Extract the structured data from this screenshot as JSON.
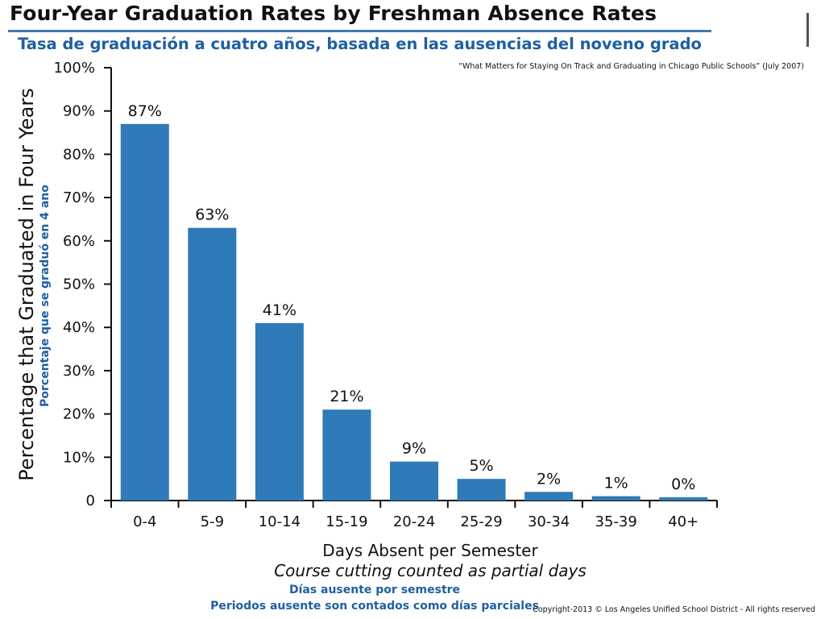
{
  "title_en": "Four-Year Graduation Rates by Freshman Absence Rates",
  "title_es": "Tasa de graduación a cuatro años, basada en las ausencias del noveno grado",
  "source": "“What Matters for Staying On Track and Graduating in Chicago Public Schools” (July 2007)",
  "ylabel_es": "Porcentaje que se graduó en 4 ano",
  "xlabel_es": "Días ausente por semestre",
  "xsub_es": "Periodos ausente son contados como días parciales",
  "copyright": "Copyright-2013 © Los Angeles Unified School District - All rights reserved",
  "colors": {
    "bar": "#2f7ab8",
    "accent": "#1f5fa2"
  },
  "chart_data": {
    "type": "bar",
    "title": "Four-Year Graduation Rates by Freshman Absence Rates",
    "xlabel": "Days Absent per Semester",
    "xsublabel": "Course cutting counted as partial days",
    "ylabel": "Percentage that Graduated in Four Years",
    "categories": [
      "0-4",
      "5-9",
      "10-14",
      "15-19",
      "20-24",
      "25-29",
      "30-34",
      "35-39",
      "40+"
    ],
    "values": [
      87,
      63,
      41,
      21,
      9,
      5,
      2,
      1,
      0
    ],
    "data_labels": [
      "87%",
      "63%",
      "41%",
      "21%",
      "9%",
      "5%",
      "2%",
      "1%",
      "0%"
    ],
    "ylim": [
      0,
      100
    ],
    "yticks": [
      0,
      10,
      20,
      30,
      40,
      50,
      60,
      70,
      80,
      90,
      100
    ],
    "ytick_labels": [
      "0",
      "10%",
      "20%",
      "30%",
      "40%",
      "50%",
      "60%",
      "70%",
      "80%",
      "90%",
      "100%"
    ],
    "grid": false,
    "legend": "none"
  }
}
